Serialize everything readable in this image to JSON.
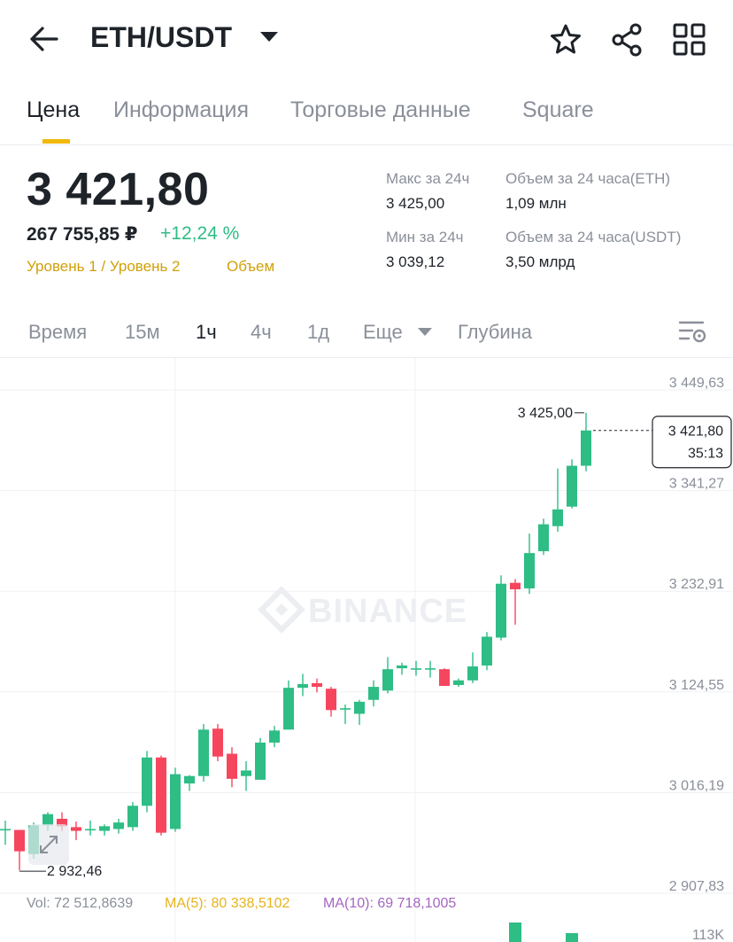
{
  "header": {
    "pair": "ETH/USDT",
    "icons": [
      "back-arrow-icon",
      "caret-down-icon",
      "star-icon",
      "share-icon",
      "grid-icon"
    ]
  },
  "tabs": [
    {
      "label": "Цена",
      "active": true
    },
    {
      "label": "Информация",
      "active": false
    },
    {
      "label": "Торговые данные",
      "active": false
    },
    {
      "label": "Square",
      "active": false
    }
  ],
  "price": {
    "last": "3 421,80",
    "rub": "267 755,85 ₽",
    "change": "+12,24 %",
    "level1": "Уровень 1 / Уровень 2",
    "volume_link": "Объем"
  },
  "stats": {
    "high_label": "Макс за 24ч",
    "high_value": "3 425,00",
    "low_label": "Мин за 24ч",
    "low_value": "3 039,12",
    "vol_eth_label": "Объем за 24 часа(ETH)",
    "vol_eth_value": "1,09 млн",
    "vol_usdt_label": "Объем за 24 часа(USDT)",
    "vol_usdt_value": "3,50 млрд"
  },
  "timeframes": {
    "items": [
      {
        "label": "Время",
        "active": false
      },
      {
        "label": "15м",
        "active": false
      },
      {
        "label": "1ч",
        "active": true
      },
      {
        "label": "4ч",
        "active": false
      },
      {
        "label": "1д",
        "active": false
      },
      {
        "label": "Еще",
        "active": false
      },
      {
        "label": "Глубина",
        "active": false
      }
    ]
  },
  "colors": {
    "up": "#2ebd85",
    "down": "#f6465d",
    "accent": "#f0b90b",
    "ma5": "#e6b31e",
    "ma10": "#a466c2"
  },
  "chart_data": {
    "type": "candlestick",
    "watermark": "BINANCE",
    "y_ticks": [
      "3 449,63",
      "3 341,27",
      "3 232,91",
      "3 124,55",
      "3 016,19",
      "2 907,83"
    ],
    "y_tick_values": [
      3449.63,
      3341.27,
      3232.91,
      3124.55,
      3016.19,
      2907.83
    ],
    "high_marker": {
      "label": "3 425,00",
      "value": 3425.0
    },
    "low_marker": {
      "label": "2 932,46",
      "value": 2932.46
    },
    "last_price_label": "3 421,80",
    "countdown": "35:13",
    "candles": [
      {
        "o": 2977,
        "h": 2986,
        "l": 2960,
        "c": 2977
      },
      {
        "o": 2976,
        "h": 2976,
        "l": 2932.46,
        "c": 2953
      },
      {
        "o": 2950,
        "h": 2984,
        "l": 2945,
        "c": 2981
      },
      {
        "o": 2981,
        "h": 2995,
        "l": 2975,
        "c": 2993
      },
      {
        "o": 2988,
        "h": 2995,
        "l": 2975,
        "c": 2980
      },
      {
        "o": 2979,
        "h": 2985,
        "l": 2965,
        "c": 2975
      },
      {
        "o": 2976,
        "h": 2986,
        "l": 2970,
        "c": 2977
      },
      {
        "o": 2975,
        "h": 2982,
        "l": 2970,
        "c": 2980
      },
      {
        "o": 2977,
        "h": 2988,
        "l": 2972,
        "c": 2984
      },
      {
        "o": 2979,
        "h": 3006,
        "l": 2975,
        "c": 3002
      },
      {
        "o": 3002,
        "h": 3061,
        "l": 2995,
        "c": 3054
      },
      {
        "o": 3054,
        "h": 3056,
        "l": 2970,
        "c": 2973
      },
      {
        "o": 2977,
        "h": 3043,
        "l": 2974,
        "c": 3036
      },
      {
        "o": 3026,
        "h": 3035,
        "l": 3018,
        "c": 3034
      },
      {
        "o": 3034,
        "h": 3090,
        "l": 3028,
        "c": 3084
      },
      {
        "o": 3085,
        "h": 3090,
        "l": 3050,
        "c": 3055
      },
      {
        "o": 3058,
        "h": 3065,
        "l": 3022,
        "c": 3031
      },
      {
        "o": 3034,
        "h": 3050,
        "l": 3018,
        "c": 3040
      },
      {
        "o": 3030,
        "h": 3075,
        "l": 3030,
        "c": 3070
      },
      {
        "o": 3070,
        "h": 3088,
        "l": 3065,
        "c": 3083
      },
      {
        "o": 3084,
        "h": 3137,
        "l": 3084,
        "c": 3129
      },
      {
        "o": 3129,
        "h": 3144,
        "l": 3120,
        "c": 3133
      },
      {
        "o": 3134,
        "h": 3139,
        "l": 3124,
        "c": 3130
      },
      {
        "o": 3128,
        "h": 3130,
        "l": 3098,
        "c": 3105
      },
      {
        "o": 3106,
        "h": 3111,
        "l": 3090,
        "c": 3107
      },
      {
        "o": 3101,
        "h": 3116,
        "l": 3089,
        "c": 3114
      },
      {
        "o": 3116,
        "h": 3137,
        "l": 3109,
        "c": 3130
      },
      {
        "o": 3126,
        "h": 3162,
        "l": 3123,
        "c": 3149
      },
      {
        "o": 3150,
        "h": 3156,
        "l": 3143,
        "c": 3153
      },
      {
        "o": 3150,
        "h": 3158,
        "l": 3142,
        "c": 3150
      },
      {
        "o": 3150,
        "h": 3158,
        "l": 3140,
        "c": 3150
      },
      {
        "o": 3149,
        "h": 3150,
        "l": 3131,
        "c": 3131
      },
      {
        "o": 3132,
        "h": 3139,
        "l": 3130,
        "c": 3137
      },
      {
        "o": 3137,
        "h": 3167,
        "l": 3134,
        "c": 3152
      },
      {
        "o": 3153,
        "h": 3189,
        "l": 3148,
        "c": 3184
      },
      {
        "o": 3183,
        "h": 3250,
        "l": 3180,
        "c": 3241
      },
      {
        "o": 3242,
        "h": 3246,
        "l": 3197,
        "c": 3235
      },
      {
        "o": 3236,
        "h": 3295,
        "l": 3230,
        "c": 3274
      },
      {
        "o": 3276,
        "h": 3311,
        "l": 3272,
        "c": 3305
      },
      {
        "o": 3303,
        "h": 3365,
        "l": 3297,
        "c": 3321
      },
      {
        "o": 3324,
        "h": 3375,
        "l": 3322,
        "c": 3368
      },
      {
        "o": 3368,
        "h": 3425,
        "l": 3362,
        "c": 3406
      }
    ],
    "vol": "Vol: 72 512,8639",
    "ma5": "MA(5): 80 338,5102",
    "ma10": "MA(10): 69 718,1005",
    "vol_axis_label": "113K"
  }
}
